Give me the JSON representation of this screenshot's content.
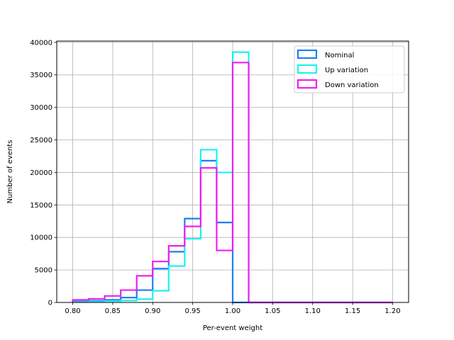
{
  "chart_data": {
    "type": "histogram",
    "title": "",
    "xlabel": "Per-event weight",
    "ylabel": "Number of events",
    "xlim": [
      0.78,
      1.22
    ],
    "ylim": [
      0,
      40200
    ],
    "grid": true,
    "legend_position": "top-right",
    "bin_edges": [
      0.8,
      0.82,
      0.84,
      0.86,
      0.88,
      0.9,
      0.92,
      0.94,
      0.96,
      0.98,
      1.0,
      1.02,
      1.04,
      1.06,
      1.08,
      1.1,
      1.12,
      1.14,
      1.16,
      1.18,
      1.2
    ],
    "x_ticks": [
      "0.80",
      "0.85",
      "0.90",
      "0.95",
      "1.00",
      "1.05",
      "1.10",
      "1.15",
      "1.20"
    ],
    "y_ticks": [
      "0",
      "5000",
      "10000",
      "15000",
      "20000",
      "25000",
      "30000",
      "35000",
      "40000"
    ],
    "series": [
      {
        "name": "Nominal",
        "color": "#1e7ff0",
        "values": [
          150,
          250,
          400,
          750,
          1900,
          5200,
          7800,
          12900,
          21800,
          12300,
          0,
          0,
          0,
          0,
          0,
          0,
          0,
          0,
          0,
          0
        ]
      },
      {
        "name": "Up variation",
        "color": "#1ef0f0",
        "values": [
          50,
          100,
          200,
          300,
          500,
          1800,
          5600,
          9800,
          23500,
          20000,
          38500,
          0,
          0,
          0,
          0,
          0,
          0,
          0,
          0,
          0
        ]
      },
      {
        "name": "Down variation",
        "color": "#f01ef0",
        "values": [
          400,
          550,
          1000,
          1900,
          4100,
          6300,
          8700,
          11700,
          20700,
          8000,
          36900,
          0,
          0,
          0,
          0,
          0,
          0,
          0,
          0,
          0
        ]
      }
    ]
  }
}
